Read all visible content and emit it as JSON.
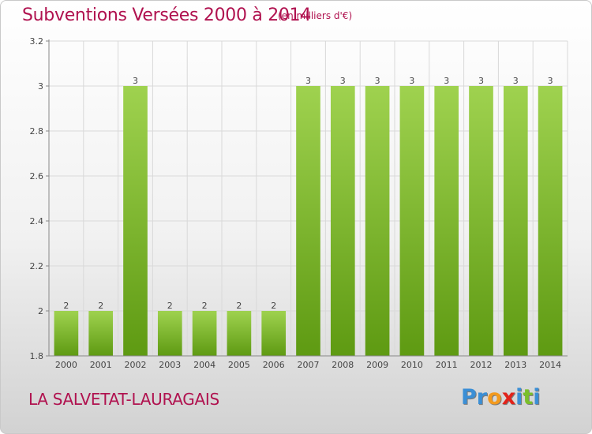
{
  "header": {
    "title": "Subventions Versées 2000 à 2014",
    "subtitle": "(en milliers d'€)"
  },
  "footer": {
    "commune": "LA SALVETAT-LAURAGAIS",
    "logo_letters": [
      "P",
      "r",
      "o",
      "x",
      "i",
      "t",
      "i"
    ]
  },
  "colors": {
    "title": "#b0124f",
    "bar_top": "#9fd24f",
    "bar_bottom": "#5e9a12",
    "grid": "#d9d9d9",
    "axis": "#888888",
    "logo": [
      "#3b8fd6",
      "#3b8fd6",
      "#f39a1e",
      "#e2231a",
      "#3b8fd6",
      "#7bbf2a",
      "#3b8fd6"
    ]
  },
  "chart_data": {
    "type": "bar",
    "title": "Subventions Versées 2000 à 2014",
    "xlabel": "",
    "ylabel": "",
    "categories": [
      "2000",
      "2001",
      "2002",
      "2003",
      "2004",
      "2005",
      "2006",
      "2007",
      "2008",
      "2009",
      "2010",
      "2011",
      "2012",
      "2013",
      "2014"
    ],
    "values": [
      2,
      2,
      3,
      2,
      2,
      2,
      2,
      3,
      3,
      3,
      3,
      3,
      3,
      3,
      3
    ],
    "data_labels": [
      "2",
      "2",
      "3",
      "2",
      "2",
      "2",
      "2",
      "3",
      "3",
      "3",
      "3",
      "3",
      "3",
      "3",
      "3"
    ],
    "ylim": [
      1.8,
      3.2
    ],
    "yticks": [
      1.8,
      2,
      2.2,
      2.4,
      2.6,
      2.8,
      3,
      3.2
    ],
    "ytick_labels": [
      "1.8",
      "2",
      "2.2",
      "2.4",
      "2.6",
      "2.8",
      "3",
      "3.2"
    ],
    "grid": true,
    "legend": "none"
  }
}
